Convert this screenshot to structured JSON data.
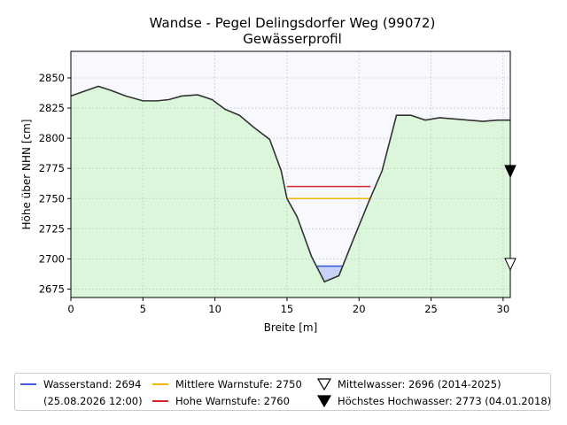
{
  "title_line1": "Wandse - Pegel Delingsdorfer Weg (99072)",
  "title_line2": "Gewässerprofil",
  "colors": {
    "ground": "#dcf6dc",
    "sky": "#f8f8ff",
    "profile_line": "#333333",
    "water_fill": "#c6d3f7",
    "water_line": "#3f5fd8",
    "warn_mid": "#f2b705",
    "warn_high": "#d62728",
    "grid": "#cccccc"
  },
  "chart_data": {
    "type": "area",
    "xlabel": "Breite [m]",
    "ylabel": "Höhe über NHN [cm]",
    "xlim": [
      0,
      30.5
    ],
    "ylim": [
      2668,
      2872
    ],
    "xticks": [
      0,
      5,
      10,
      15,
      20,
      25,
      30
    ],
    "yticks": [
      2675,
      2700,
      2725,
      2750,
      2775,
      2800,
      2825,
      2850
    ],
    "grid": true,
    "profile": {
      "x": [
        0,
        1.9,
        2.7,
        3.8,
        5.0,
        6.0,
        6.8,
        7.7,
        8.8,
        9.8,
        10.7,
        11.7,
        12.7,
        13.8,
        14.6,
        15.0,
        15.7,
        16.7,
        17.6,
        18.6,
        19.6,
        20.7,
        21.6,
        22.6,
        23.6,
        24.6,
        25.6,
        26.6,
        27.6,
        28.6,
        29.6,
        30.5
      ],
      "y": [
        2835,
        2843,
        2840,
        2835,
        2831,
        2831,
        2832,
        2835,
        2836,
        2832,
        2824,
        2819,
        2809,
        2799,
        2773,
        2750,
        2735,
        2702,
        2681,
        2686,
        2716,
        2748,
        2773,
        2819,
        2819,
        2815,
        2817,
        2816,
        2815,
        2814,
        2815,
        2815
      ]
    },
    "water": {
      "label": "Wasserstand: 2694",
      "sublabel": "(25.08.2026 12:00)",
      "value": 2694,
      "x_range": [
        17.1,
        18.9
      ]
    },
    "warn_mid": {
      "label": "Mittlere Warnstufe: 2750",
      "value": 2750,
      "x_range": [
        15.0,
        20.8
      ]
    },
    "warn_high": {
      "label": "Hohe Warnstufe: 2760",
      "value": 2760,
      "x_range": [
        15.0,
        20.8
      ]
    },
    "mittelwasser": {
      "label": "Mittelwasser: 2696 (2014-2025)",
      "value": 2696
    },
    "hochwasser": {
      "label": "Höchstes Hochwasser: 2773 (04.01.2018)",
      "value": 2773
    },
    "legend_position": "below"
  }
}
